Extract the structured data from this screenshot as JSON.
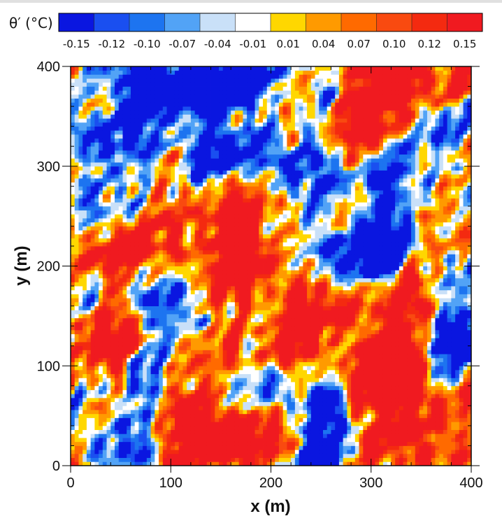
{
  "chart_data": {
    "type": "heatmap",
    "title": "",
    "colorbar": {
      "label": "θ′ (°C)",
      "tick_labels": [
        "-0.15",
        "-0.12",
        "-0.10",
        "-0.07",
        "-0.04",
        "-0.01",
        "0.01",
        "0.04",
        "0.07",
        "0.10",
        "0.12",
        "0.15"
      ],
      "colors": [
        "#0a16e0",
        "#1a4ff0",
        "#1d74f0",
        "#52a3f6",
        "#c9e0f8",
        "#ffffff",
        "#ffd700",
        "#ff9a00",
        "#ff6a00",
        "#f94a10",
        "#f42a10",
        "#f01a20"
      ]
    },
    "x": {
      "label": "x (m)",
      "range": [
        0,
        400
      ],
      "ticks": [
        0,
        100,
        200,
        300,
        400
      ],
      "tick_labels": [
        "0",
        "100",
        "200",
        "300",
        "400"
      ]
    },
    "y": {
      "label": "y (m)",
      "range": [
        0,
        400
      ],
      "ticks": [
        0,
        100,
        200,
        300,
        400
      ],
      "tick_labels": [
        "0",
        "100",
        "200",
        "300",
        "400"
      ]
    },
    "field_description_only": "turbulent potential temperature perturbation field, values between -0.15 and 0.15"
  }
}
